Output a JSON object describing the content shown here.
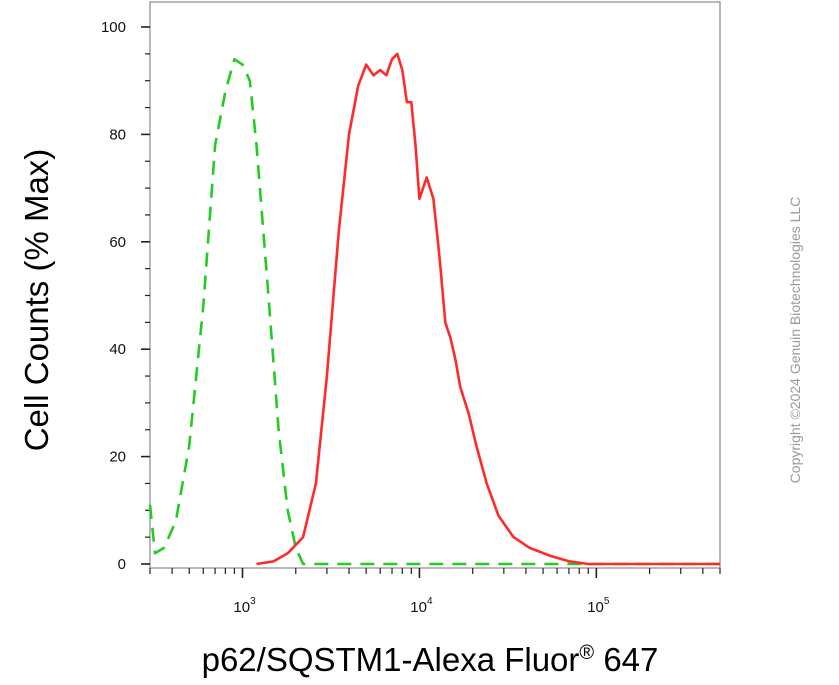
{
  "chart_data": {
    "type": "line",
    "title": "",
    "xlabel": "p62/SQSTM1-Alexa Fluor",
    "xlabel_sup": "®",
    "xlabel_tail": " 647",
    "ylabel": "Cell Counts (% Max)",
    "x_scale": "log",
    "xlim": [
      300,
      500000
    ],
    "ylim": [
      0,
      100
    ],
    "y_ticks": [
      0,
      20,
      40,
      60,
      80,
      100
    ],
    "y_tick_labels": [
      "0",
      "20",
      "40",
      "60",
      "80",
      "100"
    ],
    "x_ticks": [
      {
        "base": "10",
        "exp": "3"
      },
      {
        "base": "10",
        "exp": "4"
      },
      {
        "base": "10",
        "exp": "5"
      }
    ],
    "grid": false,
    "series": [
      {
        "style": "dashed",
        "color": "#22cc22",
        "x": [
          300,
          320,
          360,
          420,
          500,
          600,
          700,
          800,
          900,
          1000,
          1100,
          1200,
          1400,
          1600,
          1800,
          2000,
          2200,
          3000,
          10000,
          100000,
          500000
        ],
        "y": [
          11,
          2,
          3,
          8,
          22,
          48,
          78,
          88,
          94,
          93,
          90,
          78,
          50,
          25,
          10,
          3,
          0,
          0,
          0,
          0,
          0
        ]
      },
      {
        "style": "solid",
        "color": "#ff2a2a",
        "x": [
          1200,
          1500,
          1800,
          2200,
          2600,
          3000,
          3500,
          4000,
          4500,
          5000,
          5500,
          6000,
          6500,
          7000,
          7500,
          8000,
          8500,
          9000,
          9500,
          10000,
          11000,
          12000,
          13000,
          14000,
          15000,
          16000,
          17000,
          19000,
          21000,
          24000,
          28000,
          34000,
          42000,
          55000,
          70000,
          90000,
          120000,
          500000
        ],
        "y": [
          0,
          0.5,
          2,
          5,
          15,
          35,
          62,
          80,
          89,
          93,
          91,
          92,
          91,
          94,
          95,
          92,
          86,
          86,
          78,
          68,
          72,
          68,
          57,
          45,
          42,
          38,
          33,
          28,
          22,
          15,
          9,
          5,
          3,
          1.5,
          0.5,
          0,
          0,
          0
        ]
      }
    ]
  },
  "watermark": "Copyright ©2024 Genuin Biotechnologies LLC"
}
